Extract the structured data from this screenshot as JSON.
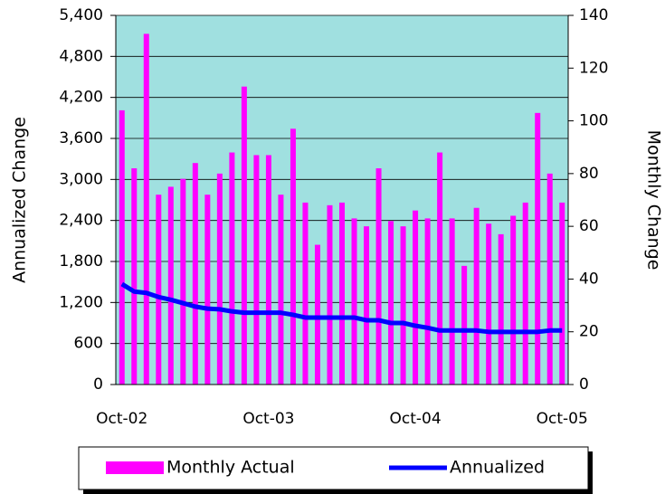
{
  "chart_data": {
    "type": "bar-line",
    "y_label": "Annualized Change",
    "y2_label": "Monthly Change",
    "categories": [
      "Oct-02",
      null,
      null,
      null,
      null,
      null,
      null,
      null,
      null,
      null,
      null,
      null,
      "Oct-03",
      null,
      null,
      null,
      null,
      null,
      null,
      null,
      null,
      null,
      null,
      null,
      "Oct-04",
      null,
      null,
      null,
      null,
      null,
      null,
      null,
      null,
      null,
      null,
      null,
      "Oct-05"
    ],
    "series": [
      {
        "name": "Monthly Actual",
        "type": "bar",
        "axis": "y2",
        "color": "#ff00ff",
        "values": [
          104,
          82,
          133,
          72,
          75,
          78,
          84,
          72,
          80,
          88,
          113,
          87,
          87,
          72,
          97,
          69,
          53,
          68,
          69,
          63,
          60,
          82,
          62,
          60,
          66,
          63,
          88,
          63,
          45,
          67,
          61,
          57,
          64,
          69,
          103,
          80,
          69
        ]
      },
      {
        "name": "Annualized",
        "type": "line",
        "axis": "y",
        "color": "#0000ff",
        "values": [
          1470,
          1360,
          1340,
          1280,
          1240,
          1190,
          1140,
          1110,
          1100,
          1070,
          1050,
          1050,
          1050,
          1050,
          1020,
          980,
          980,
          980,
          980,
          980,
          940,
          940,
          900,
          900,
          860,
          830,
          790,
          790,
          790,
          790,
          770,
          770,
          770,
          770,
          770,
          790,
          790
        ]
      }
    ],
    "ylim": [
      0,
      5400
    ],
    "yticks": [
      0,
      600,
      {
        "value": 1200,
        "label": "1,200"
      },
      {
        "value": 1800,
        "label": "1,800"
      },
      {
        "value": 2400,
        "label": "2,400"
      },
      {
        "value": 3000,
        "label": "3,000"
      },
      {
        "value": 3600,
        "label": "3,600"
      },
      {
        "value": 4200,
        "label": "4,200"
      },
      {
        "value": 4800,
        "label": "4,800"
      },
      {
        "value": 5400,
        "label": "5,400"
      }
    ],
    "y2lim": [
      0,
      140
    ],
    "y2ticks": [
      0,
      20,
      40,
      60,
      80,
      100,
      120,
      140
    ],
    "grid": true,
    "plot_background": "#a0e0e0",
    "legend": "bottom"
  }
}
